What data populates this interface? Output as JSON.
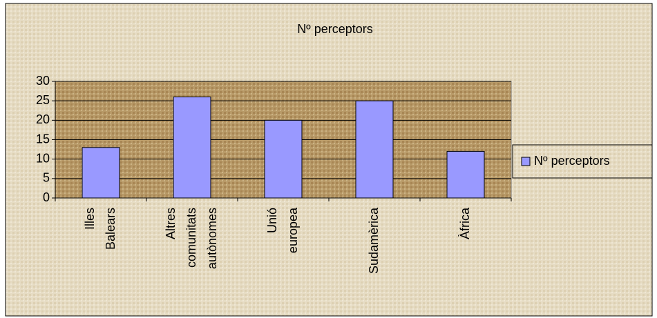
{
  "chart_data": {
    "type": "bar",
    "title": "Nº perceptors",
    "categories": [
      [
        "Illes",
        "Balears"
      ],
      [
        "Altres",
        "comunitats",
        "autònomes"
      ],
      [
        "Unió",
        "europea"
      ],
      [
        "Sudamèrica"
      ],
      [
        "Àfrica"
      ]
    ],
    "series": [
      {
        "name": "Nº perceptors",
        "color": "#9999ff",
        "values": [
          13,
          26,
          20,
          25,
          12
        ]
      }
    ],
    "ylim": [
      0,
      30
    ],
    "yticks": [
      0,
      5,
      10,
      15,
      20,
      25,
      30
    ],
    "grid": true,
    "legend": "right"
  }
}
